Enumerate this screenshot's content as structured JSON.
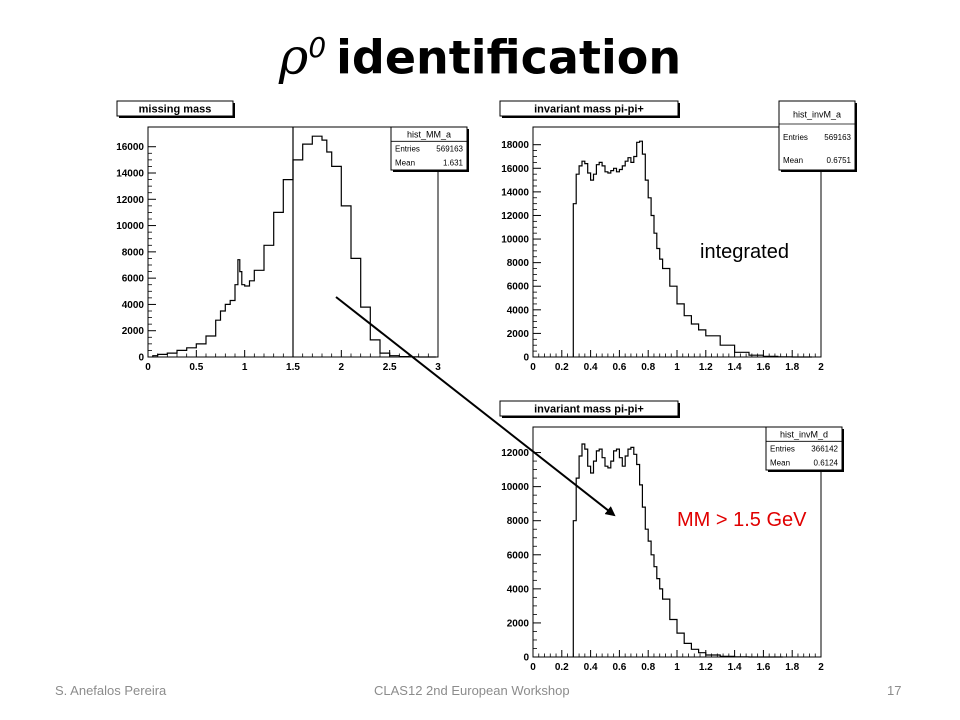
{
  "slide": {
    "title_symbol": "ρ",
    "title_superscript": "0",
    "title_text": "identification",
    "footer_left": "S. Anefalos Pereira",
    "footer_center": "CLAS12 2nd European Workshop",
    "footer_right": "17"
  },
  "annotations": {
    "integrated": "integrated",
    "cut": "MM > 1.5 GeV",
    "cut_color": "#e00000"
  },
  "chart_data": [
    {
      "type": "histogram",
      "title": "missing mass",
      "stats": {
        "name": "hist_MM_a",
        "entries_label": "Entries",
        "entries": "569163",
        "mean_label": "Mean",
        "mean": "1.631"
      },
      "xlim": [
        0,
        3
      ],
      "ylim": [
        0,
        17500
      ],
      "xticks": [
        0,
        0.5,
        1,
        1.5,
        2,
        2.5,
        3
      ],
      "xtick_labels": [
        "0",
        "0.5",
        "1",
        "1.5",
        "2",
        "2.5",
        "3"
      ],
      "yticks": [
        0,
        2000,
        4000,
        6000,
        8000,
        10000,
        12000,
        14000,
        16000
      ],
      "cut_line_x": 1.5,
      "x": [
        0.05,
        0.1,
        0.2,
        0.3,
        0.4,
        0.5,
        0.6,
        0.7,
        0.75,
        0.8,
        0.85,
        0.9,
        0.93,
        0.95,
        0.97,
        1.0,
        1.05,
        1.1,
        1.2,
        1.3,
        1.4,
        1.5,
        1.6,
        1.7,
        1.75,
        1.8,
        1.85,
        1.9,
        2.0,
        2.1,
        2.2,
        2.3,
        2.4,
        2.5,
        2.6,
        2.7,
        2.8,
        2.9
      ],
      "values": [
        100,
        200,
        300,
        500,
        700,
        1000,
        1600,
        2800,
        3500,
        4000,
        4300,
        5500,
        7400,
        6500,
        5500,
        5400,
        5800,
        6600,
        8500,
        11000,
        13500,
        15000,
        16200,
        16800,
        16800,
        16500,
        15600,
        14500,
        11500,
        7500,
        3800,
        1300,
        300,
        100,
        30,
        10,
        0,
        0
      ]
    },
    {
      "type": "histogram",
      "title": "invariant mass pi-pi+",
      "stats": {
        "name": "hist_invM_a",
        "entries_label": "Entries",
        "entries": "569163",
        "mean_label": "Mean",
        "mean": "0.6751"
      },
      "xlim": [
        0,
        2
      ],
      "ylim": [
        0,
        19500
      ],
      "xticks": [
        0,
        0.2,
        0.4,
        0.6,
        0.8,
        1,
        1.2,
        1.4,
        1.6,
        1.8,
        2
      ],
      "xtick_labels": [
        "0",
        "0.2",
        "0.4",
        "0.6",
        "0.8",
        "1",
        "1.2",
        "1.4",
        "1.6",
        "1.8",
        "2"
      ],
      "yticks": [
        0,
        2000,
        4000,
        6000,
        8000,
        10000,
        12000,
        14000,
        16000,
        18000
      ],
      "x": [
        0.28,
        0.3,
        0.32,
        0.34,
        0.36,
        0.38,
        0.4,
        0.42,
        0.44,
        0.46,
        0.48,
        0.5,
        0.52,
        0.54,
        0.56,
        0.58,
        0.6,
        0.62,
        0.64,
        0.66,
        0.68,
        0.7,
        0.72,
        0.74,
        0.76,
        0.78,
        0.8,
        0.82,
        0.84,
        0.86,
        0.88,
        0.9,
        0.95,
        1.0,
        1.05,
        1.1,
        1.15,
        1.2,
        1.3,
        1.4,
        1.5,
        1.6,
        1.7,
        1.8,
        1.9
      ],
      "values": [
        13000,
        15500,
        16200,
        16600,
        16400,
        15600,
        15000,
        15500,
        16300,
        16500,
        16200,
        15700,
        15600,
        15800,
        16000,
        15700,
        15900,
        16200,
        16600,
        16900,
        16500,
        17000,
        18200,
        18300,
        17200,
        15000,
        13500,
        12000,
        10500,
        9200,
        8300,
        7500,
        6000,
        4500,
        3500,
        2800,
        2300,
        1800,
        1000,
        400,
        150,
        50,
        20,
        0,
        0
      ]
    },
    {
      "type": "histogram",
      "title": "invariant mass pi-pi+",
      "stats": {
        "name": "hist_invM_d",
        "entries_label": "Entries",
        "entries": "366142",
        "mean_label": "Mean",
        "mean": "0.6124"
      },
      "xlim": [
        0,
        2
      ],
      "ylim": [
        0,
        13500
      ],
      "xticks": [
        0,
        0.2,
        0.4,
        0.6,
        0.8,
        1,
        1.2,
        1.4,
        1.6,
        1.8,
        2
      ],
      "xtick_labels": [
        "0",
        "0.2",
        "0.4",
        "0.6",
        "0.8",
        "1",
        "1.2",
        "1.4",
        "1.6",
        "1.8",
        "2"
      ],
      "yticks": [
        0,
        2000,
        4000,
        6000,
        8000,
        10000,
        12000
      ],
      "x": [
        0.28,
        0.3,
        0.32,
        0.34,
        0.36,
        0.38,
        0.4,
        0.42,
        0.44,
        0.46,
        0.48,
        0.5,
        0.52,
        0.54,
        0.56,
        0.58,
        0.6,
        0.62,
        0.64,
        0.66,
        0.68,
        0.7,
        0.72,
        0.74,
        0.76,
        0.78,
        0.8,
        0.82,
        0.84,
        0.86,
        0.88,
        0.9,
        0.95,
        1.0,
        1.05,
        1.1,
        1.15,
        1.2,
        1.3,
        1.4,
        1.5,
        1.6,
        1.7
      ],
      "values": [
        8000,
        10500,
        11800,
        12500,
        12200,
        11200,
        10800,
        11500,
        12100,
        12200,
        11700,
        11200,
        11100,
        11500,
        12100,
        12200,
        11700,
        11200,
        11800,
        12200,
        12300,
        11900,
        11300,
        10100,
        8800,
        7500,
        6800,
        6000,
        5300,
        4600,
        4000,
        3400,
        2200,
        1400,
        800,
        450,
        250,
        120,
        40,
        10,
        0,
        0,
        0
      ]
    }
  ]
}
